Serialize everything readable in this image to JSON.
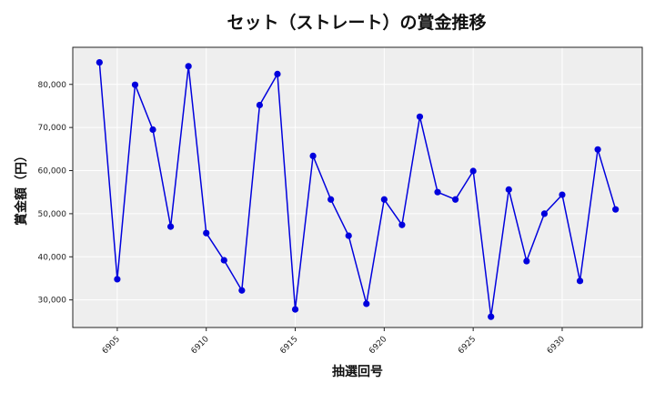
{
  "chart_data": {
    "type": "line",
    "title": "セット（ストレート）の賞金推移",
    "xlabel": "抽選回号",
    "ylabel": "賞金額（円）",
    "x": [
      6904,
      6905,
      6906,
      6907,
      6908,
      6909,
      6910,
      6911,
      6912,
      6913,
      6914,
      6915,
      6916,
      6917,
      6918,
      6919,
      6920,
      6921,
      6922,
      6923,
      6924,
      6925,
      6926,
      6927,
      6928,
      6929,
      6930,
      6931,
      6932,
      6933
    ],
    "series": [
      {
        "name": "賞金額",
        "color": "#0000dd",
        "values": [
          85100,
          34800,
          79900,
          69500,
          47000,
          84200,
          45500,
          39200,
          32200,
          75200,
          82400,
          27800,
          63400,
          53300,
          44900,
          29100,
          53300,
          47400,
          72500,
          55000,
          53300,
          59900,
          26100,
          55600,
          39000,
          50000,
          54400,
          34400,
          64900,
          51000
        ]
      }
    ],
    "xticks": [
      6905,
      6910,
      6915,
      6920,
      6925,
      6930
    ],
    "xtick_labels": [
      "6905",
      "6910",
      "6915",
      "6920",
      "6925",
      "6930"
    ],
    "yticks": [
      30000,
      40000,
      50000,
      60000,
      70000,
      80000
    ],
    "ytick_labels": [
      "30,000",
      "40,000",
      "50,000",
      "60,000",
      "70,000",
      "80,000"
    ],
    "xlim": [
      6902.5,
      6934.5
    ],
    "ylim": [
      23600,
      88600
    ],
    "grid": true,
    "legend": null,
    "background": "#eeeeee"
  }
}
